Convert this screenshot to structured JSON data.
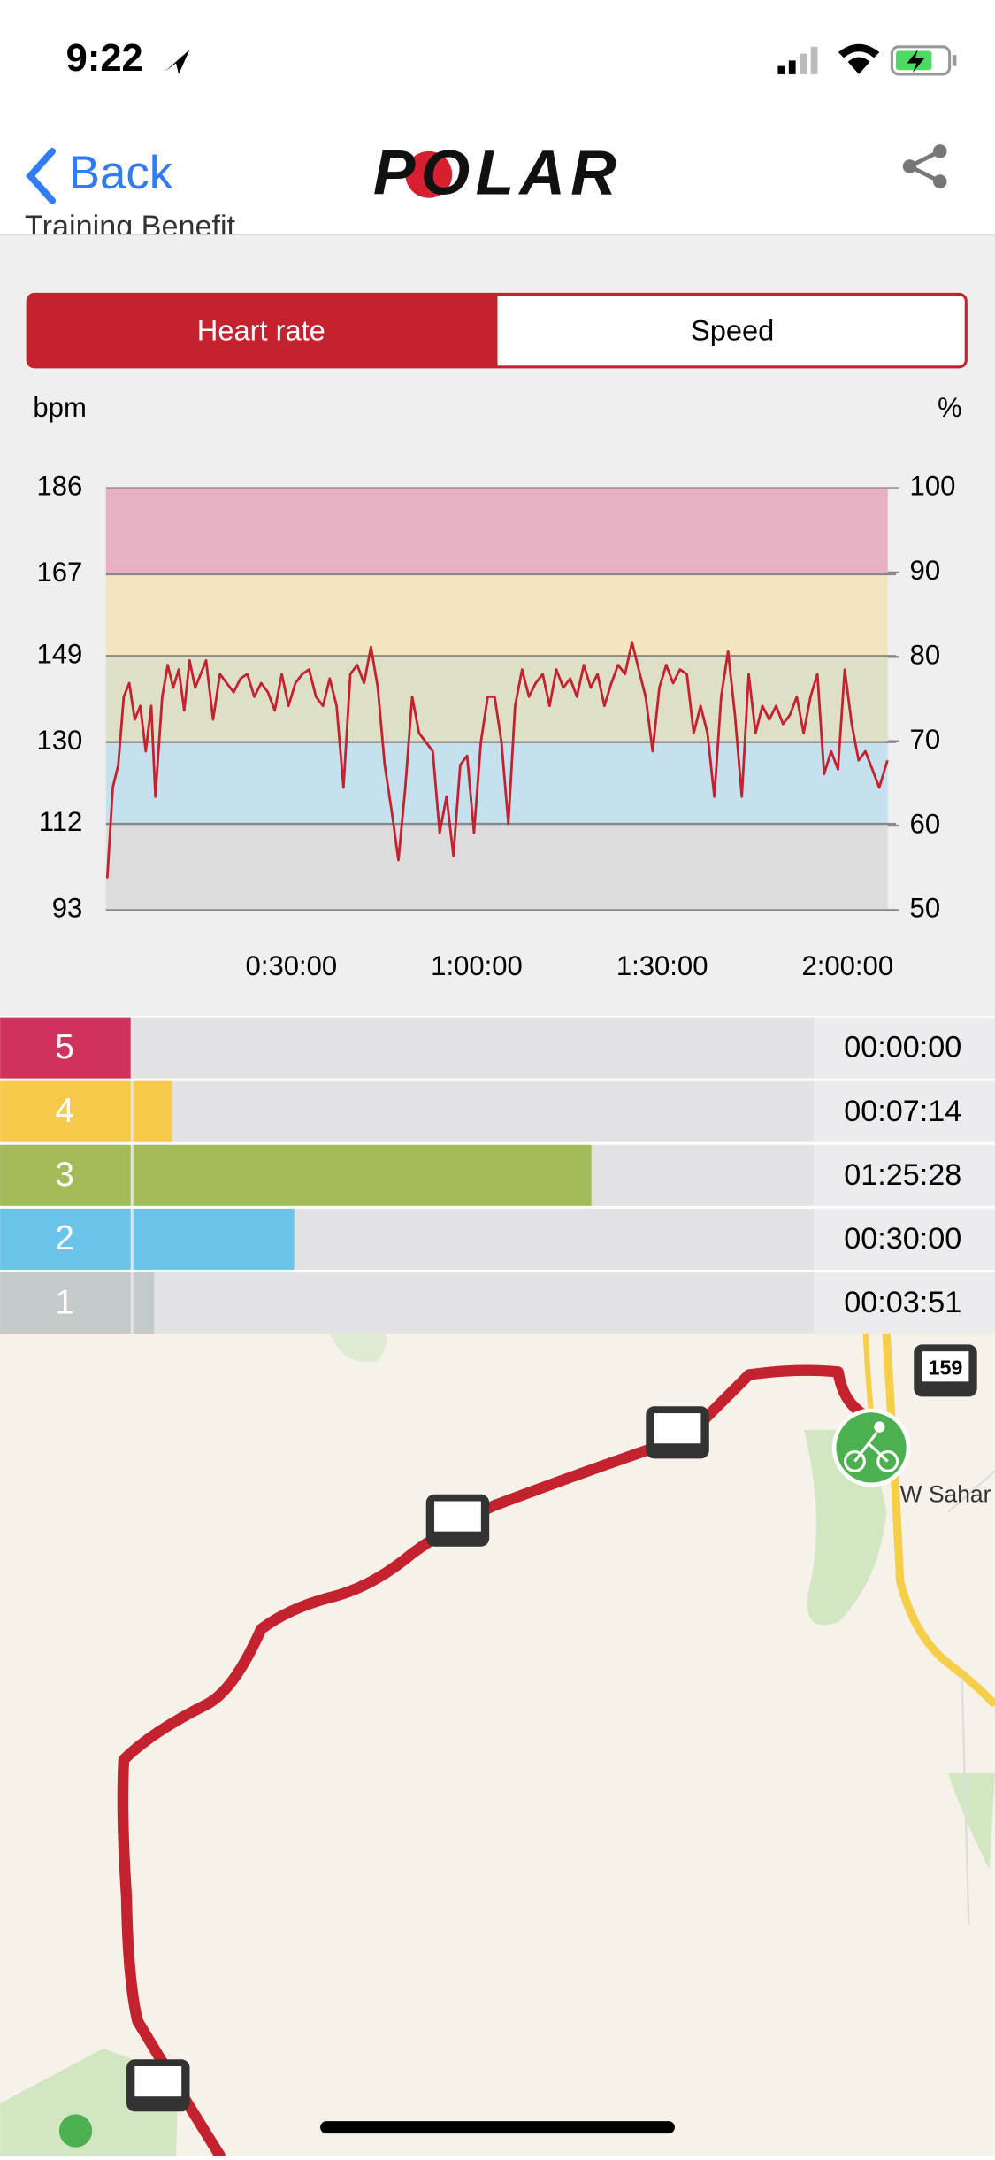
{
  "status_bar": {
    "time": "9:22"
  },
  "nav": {
    "back": "Back",
    "logo": "POLAR"
  },
  "section_title": "Training Benefit",
  "tabs": [
    "Heart rate",
    "Speed"
  ],
  "chart_data": {
    "type": "line",
    "ylabel": "bpm",
    "y2label": "%",
    "color": "#c4222f",
    "x": [
      13,
      67,
      120,
      173,
      227,
      280,
      333,
      387,
      440,
      480,
      547,
      600,
      653,
      707,
      760,
      813,
      867,
      920,
      973,
      1040,
      1107,
      1173,
      1240,
      1307,
      1373,
      1440,
      1507,
      1573,
      1640,
      1707,
      1773,
      1840,
      1907,
      1973,
      2040,
      2107,
      2173,
      2240,
      2307,
      2373,
      2440,
      2507,
      2573,
      2640,
      2707,
      2773,
      2840,
      2907,
      2973,
      3040,
      3107,
      3173,
      3240,
      3307,
      3373,
      3440,
      3507,
      3573,
      3640,
      3707,
      3773,
      3840,
      3907,
      3973,
      4040,
      4107,
      4173,
      4240,
      4307,
      4373,
      4440,
      4507,
      4573,
      4640,
      4707,
      4773,
      4840,
      4907,
      4973,
      5040,
      5107,
      5173,
      5240,
      5307,
      5373,
      5440,
      5507,
      5573,
      5640,
      5707,
      5773,
      5840,
      5907,
      5973,
      6040,
      6107,
      6173,
      6240,
      6307,
      6373,
      6440,
      6507,
      6573,
      6640,
      6707,
      6773,
      6840,
      6907,
      6973,
      7040,
      7107,
      7173,
      7240,
      7307,
      7373,
      7440,
      7507,
      7587
    ],
    "values": [
      100,
      120,
      125,
      140,
      143,
      135,
      138,
      128,
      138,
      118,
      140,
      147,
      142,
      146,
      137,
      148,
      142,
      145,
      148,
      135,
      145,
      143,
      141,
      144,
      145,
      140,
      143,
      141,
      137,
      145,
      138,
      143,
      145,
      146,
      140,
      138,
      144,
      138,
      120,
      145,
      147,
      143,
      151,
      142,
      125,
      115,
      104,
      120,
      140,
      132,
      130,
      128,
      110,
      118,
      105,
      125,
      127,
      110,
      130,
      140,
      140,
      130,
      112,
      138,
      146,
      140,
      143,
      145,
      138,
      146,
      142,
      144,
      140,
      147,
      142,
      145,
      138,
      143,
      147,
      145,
      152,
      146,
      140,
      128,
      142,
      147,
      143,
      146,
      145,
      132,
      138,
      132,
      118,
      140,
      150,
      136,
      118,
      145,
      132,
      138,
      135,
      138,
      134,
      136,
      140,
      132,
      140,
      145,
      123,
      128,
      124,
      146,
      134,
      126,
      128,
      124,
      120,
      126
    ],
    "xlim": [
      0,
      7590
    ],
    "xticks": [
      {
        "value": 1800,
        "label": "0:30:00"
      },
      {
        "value": 3600,
        "label": "1:00:00"
      },
      {
        "value": 5400,
        "label": "1:30:00"
      },
      {
        "value": 7200,
        "label": "2:00:00"
      }
    ],
    "ylim": [
      93,
      186
    ],
    "yticks": [
      93,
      112,
      130,
      149,
      167,
      186
    ],
    "y2lim": [
      50,
      100
    ],
    "y2ticks": [
      50,
      60,
      70,
      80,
      90,
      100
    ],
    "band_colors": [
      "#dcdcdc",
      "#c5e1ee",
      "#dde0c6",
      "#f3e5bf",
      "#e5b1c3"
    ],
    "grid": true
  },
  "zones": {
    "labels": [
      "5",
      "4",
      "3",
      "2",
      "1"
    ],
    "values": [
      0,
      434,
      5128,
      1800,
      231
    ],
    "value_labels": [
      "00:00:00",
      "00:07:14",
      "01:25:28",
      "00:30:00",
      "00:03:51"
    ],
    "colors": [
      "#d0325e",
      "#f6c94b",
      "#a3bb58",
      "#6ac4ea",
      "#c4c9c9"
    ],
    "xlim": [
      0,
      7600
    ]
  },
  "map": {
    "labels": [
      "159",
      "W Sahar"
    ]
  }
}
